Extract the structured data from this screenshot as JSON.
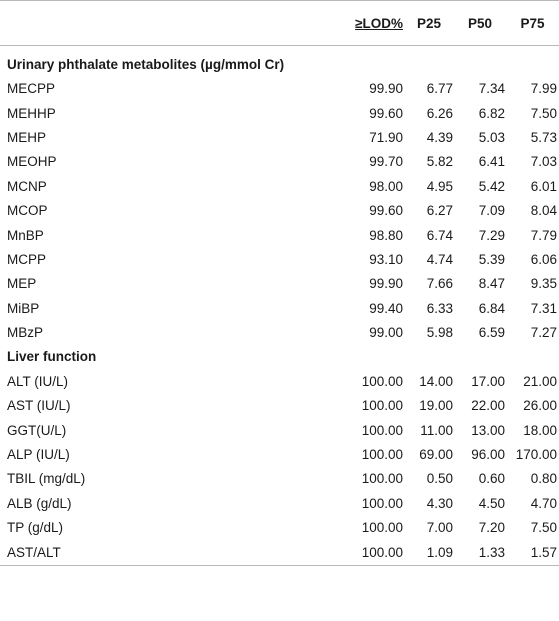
{
  "headers": {
    "label": "",
    "lod": "≥LOD%",
    "p25": "P25",
    "p50": "P50",
    "p75": "P75"
  },
  "sections": [
    {
      "title": "Urinary phthalate metabolites (µg/mmol Cr)",
      "rows": [
        {
          "name": "MECPP",
          "lod": "99.90",
          "p25": "6.77",
          "p50": "7.34",
          "p75": "7.99"
        },
        {
          "name": "MEHHP",
          "lod": "99.60",
          "p25": "6.26",
          "p50": "6.82",
          "p75": "7.50"
        },
        {
          "name": "MEHP",
          "lod": "71.90",
          "p25": "4.39",
          "p50": "5.03",
          "p75": "5.73"
        },
        {
          "name": "MEOHP",
          "lod": "99.70",
          "p25": "5.82",
          "p50": "6.41",
          "p75": "7.03"
        },
        {
          "name": "MCNP",
          "lod": "98.00",
          "p25": "4.95",
          "p50": "5.42",
          "p75": "6.01"
        },
        {
          "name": "MCOP",
          "lod": "99.60",
          "p25": "6.27",
          "p50": "7.09",
          "p75": "8.04"
        },
        {
          "name": "MnBP",
          "lod": "98.80",
          "p25": "6.74",
          "p50": "7.29",
          "p75": "7.79"
        },
        {
          "name": "MCPP",
          "lod": "93.10",
          "p25": "4.74",
          "p50": "5.39",
          "p75": "6.06"
        },
        {
          "name": "MEP",
          "lod": "99.90",
          "p25": "7.66",
          "p50": "8.47",
          "p75": "9.35"
        },
        {
          "name": "MiBP",
          "lod": "99.40",
          "p25": "6.33",
          "p50": "6.84",
          "p75": "7.31"
        },
        {
          "name": "MBzP",
          "lod": "99.00",
          "p25": "5.98",
          "p50": "6.59",
          "p75": "7.27"
        }
      ]
    },
    {
      "title": "Liver function",
      "rows": [
        {
          "name": "ALT (IU/L)",
          "lod": "100.00",
          "p25": "14.00",
          "p50": "17.00",
          "p75": "21.00"
        },
        {
          "name": "AST (IU/L)",
          "lod": "100.00",
          "p25": "19.00",
          "p50": "22.00",
          "p75": "26.00"
        },
        {
          "name": "GGT(U/L)",
          "lod": "100.00",
          "p25": "11.00",
          "p50": "13.00",
          "p75": "18.00"
        },
        {
          "name": "ALP (IU/L)",
          "lod": "100.00",
          "p25": "69.00",
          "p50": "96.00",
          "p75": "170.00"
        },
        {
          "name": "TBIL (mg/dL)",
          "lod": "100.00",
          "p25": "0.50",
          "p50": "0.60",
          "p75": "0.80"
        },
        {
          "name": "ALB (g/dL)",
          "lod": "100.00",
          "p25": "4.30",
          "p50": "4.50",
          "p75": "4.70"
        },
        {
          "name": "TP (g/dL)",
          "lod": "100.00",
          "p25": "7.00",
          "p50": "7.20",
          "p75": "7.50"
        },
        {
          "name": "AST/ALT",
          "lod": "100.00",
          "p25": "1.09",
          "p50": "1.33",
          "p75": "1.57"
        }
      ]
    }
  ],
  "colors": {
    "rule": "#b9b9b9",
    "text": "#1a1a1a",
    "background": "#ffffff"
  }
}
